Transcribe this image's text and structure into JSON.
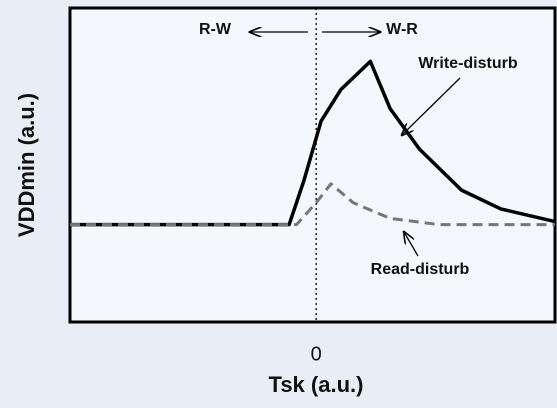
{
  "chart_data": {
    "type": "line",
    "xlabel": "Tsk (a.u.)",
    "ylabel": "VDDmin (a.u.)",
    "xlim": [
      -1,
      0.97
    ],
    "xticks": [
      0
    ],
    "ylim": [
      0,
      1
    ],
    "annotations": [
      "R-W",
      "W-R",
      "Write-disturb",
      "Read-disturb"
    ],
    "series": [
      {
        "name": "Write-disturb",
        "color": "#000000",
        "dash": false,
        "x": [
          -1,
          -0.11,
          -0.05,
          0.02,
          0.1,
          0.22,
          0.3,
          0.42,
          0.59,
          0.75,
          0.97
        ],
        "values": [
          0.31,
          0.31,
          0.45,
          0.64,
          0.74,
          0.83,
          0.68,
          0.55,
          0.42,
          0.36,
          0.32
        ]
      },
      {
        "name": "Read-disturb",
        "color": "#777777",
        "dash": true,
        "x": [
          -1,
          -0.08,
          0,
          0.06,
          0.15,
          0.3,
          0.5,
          0.97
        ],
        "values": [
          0.31,
          0.31,
          0.38,
          0.44,
          0.38,
          0.33,
          0.31,
          0.31
        ]
      }
    ]
  }
}
